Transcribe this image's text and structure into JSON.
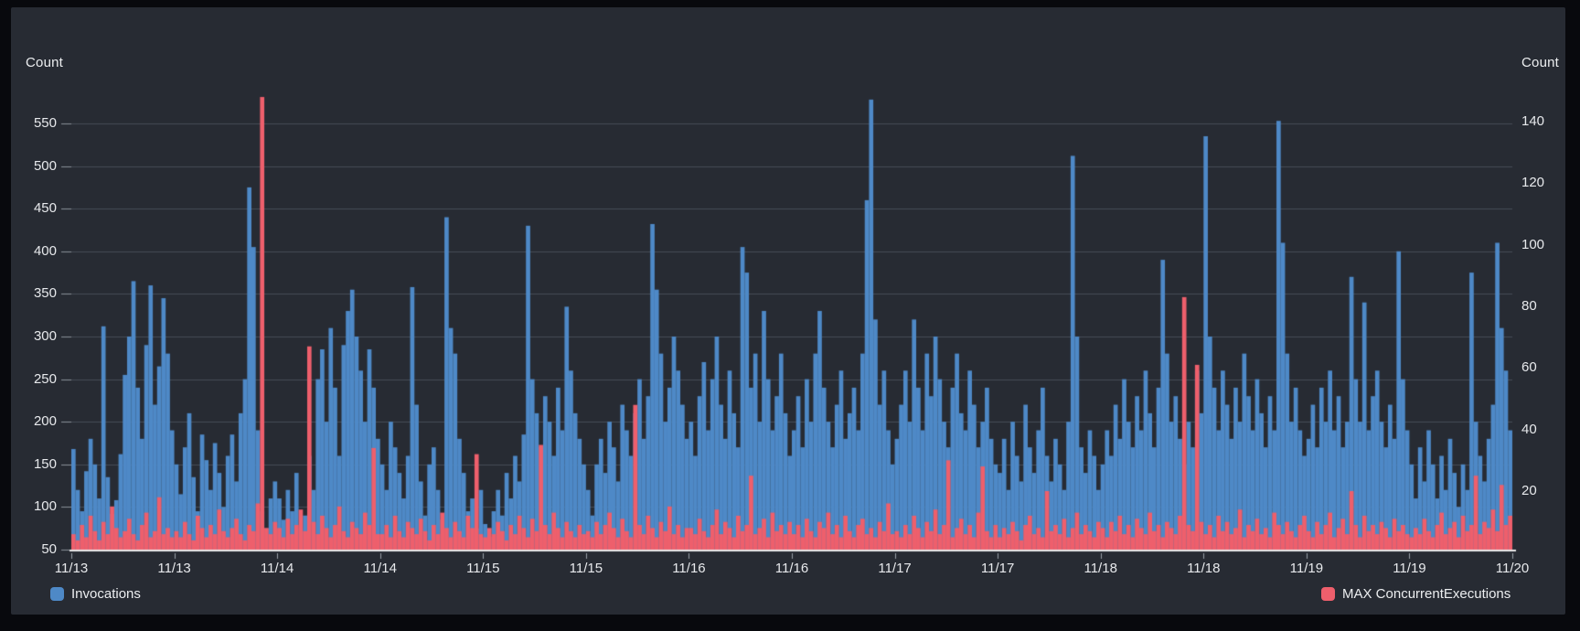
{
  "chart_data": {
    "type": "bar",
    "title": "",
    "grid": true,
    "legend_position": "bottom",
    "x_axis": {
      "tick_labels": [
        "11/13",
        "11/13",
        "11/14",
        "11/14",
        "11/15",
        "11/15",
        "11/16",
        "11/16",
        "11/17",
        "11/17",
        "11/18",
        "11/18",
        "11/19",
        "11/19",
        "11/20"
      ]
    },
    "left_axis": {
      "label": "Count",
      "ticks": [
        550,
        500,
        450,
        400,
        350,
        300,
        250,
        200,
        150,
        100,
        50
      ],
      "range": [
        50,
        600
      ]
    },
    "right_axis": {
      "label": "Count",
      "ticks": [
        140,
        120,
        100,
        80,
        60,
        40,
        20
      ],
      "range": [
        1,
        153
      ]
    },
    "series": [
      {
        "name": "Invocations",
        "axis": "left",
        "color": "#4e89c7",
        "values": [
          168,
          120,
          95,
          142,
          180,
          150,
          110,
          312,
          135,
          92,
          108,
          162,
          255,
          300,
          365,
          240,
          180,
          290,
          360,
          220,
          265,
          345,
          280,
          190,
          150,
          115,
          170,
          210,
          135,
          95,
          185,
          155,
          120,
          175,
          140,
          100,
          160,
          185,
          130,
          210,
          250,
          475,
          405,
          190,
          95,
          75,
          110,
          130,
          110,
          85,
          120,
          95,
          140,
          75,
          90,
          160,
          120,
          250,
          285,
          200,
          310,
          240,
          160,
          290,
          330,
          355,
          300,
          260,
          200,
          285,
          240,
          180,
          150,
          120,
          200,
          170,
          140,
          110,
          160,
          358,
          220,
          130,
          90,
          150,
          170,
          120,
          85,
          440,
          310,
          280,
          180,
          140,
          95,
          110,
          75,
          120,
          80,
          65,
          95,
          120,
          90,
          140,
          110,
          160,
          130,
          185,
          430,
          250,
          210,
          170,
          230,
          200,
          160,
          240,
          190,
          335,
          260,
          210,
          180,
          150,
          120,
          90,
          150,
          180,
          140,
          200,
          170,
          130,
          220,
          190,
          160,
          210,
          250,
          180,
          230,
          432,
          355,
          280,
          200,
          240,
          300,
          260,
          220,
          180,
          200,
          160,
          230,
          270,
          190,
          250,
          300,
          220,
          180,
          260,
          210,
          170,
          405,
          375,
          240,
          280,
          200,
          330,
          250,
          190,
          230,
          280,
          210,
          160,
          190,
          230,
          170,
          250,
          200,
          280,
          330,
          240,
          200,
          170,
          220,
          260,
          180,
          210,
          240,
          190,
          280,
          460,
          578,
          320,
          220,
          260,
          190,
          150,
          180,
          220,
          260,
          200,
          320,
          240,
          190,
          280,
          230,
          300,
          250,
          200,
          170,
          240,
          280,
          210,
          190,
          260,
          220,
          170,
          200,
          240,
          180,
          150,
          140,
          180,
          120,
          200,
          160,
          130,
          220,
          170,
          140,
          190,
          240,
          160,
          130,
          180,
          150,
          120,
          200,
          512,
          300,
          170,
          140,
          190,
          160,
          120,
          150,
          190,
          160,
          220,
          180,
          250,
          200,
          170,
          230,
          190,
          260,
          210,
          170,
          240,
          390,
          280,
          200,
          230,
          180,
          150,
          200,
          170,
          260,
          210,
          535,
          300,
          240,
          190,
          260,
          220,
          180,
          240,
          200,
          280,
          230,
          190,
          250,
          210,
          170,
          230,
          190,
          553,
          410,
          280,
          200,
          240,
          190,
          160,
          180,
          220,
          170,
          240,
          200,
          260,
          190,
          230,
          170,
          200,
          370,
          250,
          200,
          340,
          190,
          230,
          260,
          200,
          170,
          220,
          180,
          400,
          250,
          190,
          150,
          110,
          170,
          130,
          190,
          150,
          110,
          160,
          120,
          180,
          140,
          100,
          150,
          120,
          375,
          200,
          160,
          130,
          180,
          220,
          410,
          310,
          260,
          190
        ]
      },
      {
        "name": "MAX ConcurrentExecutions",
        "axis": "right",
        "color": "#ee5f6c",
        "values": [
          6,
          4,
          9,
          5,
          12,
          7,
          4,
          10,
          6,
          15,
          8,
          5,
          7,
          11,
          6,
          4,
          9,
          13,
          5,
          7,
          18,
          6,
          8,
          5,
          7,
          5,
          10,
          6,
          4,
          12,
          8,
          5,
          9,
          6,
          14,
          7,
          5,
          8,
          11,
          6,
          4,
          9,
          7,
          16,
          148,
          8,
          6,
          10,
          8,
          5,
          11,
          6,
          9,
          14,
          7,
          67,
          10,
          6,
          12,
          8,
          5,
          9,
          15,
          7,
          5,
          10,
          8,
          6,
          13,
          9,
          34,
          6,
          6,
          9,
          5,
          12,
          7,
          5,
          10,
          8,
          6,
          11,
          7,
          4,
          9,
          6,
          13,
          8,
          5,
          10,
          7,
          5,
          12,
          8,
          32,
          6,
          5,
          8,
          6,
          10,
          7,
          4,
          9,
          6,
          12,
          8,
          5,
          11,
          7,
          35,
          9,
          6,
          13,
          8,
          5,
          10,
          7,
          5,
          9,
          6,
          7,
          5,
          10,
          6,
          9,
          13,
          8,
          5,
          11,
          7,
          5,
          48,
          9,
          6,
          12,
          8,
          5,
          10,
          7,
          15,
          6,
          9,
          5,
          8,
          8,
          6,
          11,
          7,
          5,
          9,
          14,
          6,
          10,
          8,
          5,
          12,
          7,
          9,
          25,
          6,
          8,
          11,
          5,
          13,
          7,
          9,
          6,
          10,
          6,
          9,
          5,
          11,
          7,
          5,
          10,
          8,
          13,
          6,
          9,
          5,
          12,
          7,
          5,
          9,
          11,
          6,
          8,
          5,
          10,
          7,
          16,
          6,
          7,
          5,
          9,
          6,
          12,
          8,
          5,
          10,
          7,
          14,
          6,
          9,
          30,
          5,
          8,
          11,
          6,
          9,
          5,
          13,
          28,
          7,
          5,
          9,
          5,
          8,
          6,
          10,
          7,
          4,
          9,
          12,
          6,
          8,
          5,
          20,
          7,
          9,
          6,
          11,
          5,
          8,
          13,
          6,
          9,
          7,
          5,
          10,
          8,
          5,
          10,
          7,
          12,
          6,
          9,
          5,
          11,
          8,
          6,
          13,
          7,
          9,
          5,
          10,
          8,
          6,
          12,
          83,
          9,
          7,
          61,
          10,
          6,
          9,
          5,
          12,
          7,
          10,
          6,
          8,
          14,
          5,
          9,
          7,
          11,
          6,
          8,
          5,
          13,
          9,
          6,
          10,
          7,
          5,
          9,
          12,
          7,
          5,
          10,
          6,
          9,
          13,
          5,
          8,
          11,
          6,
          20,
          9,
          5,
          12,
          7,
          9,
          6,
          10,
          8,
          5,
          11,
          7,
          9,
          6,
          5,
          8,
          6,
          11,
          7,
          5,
          9,
          13,
          6,
          8,
          10,
          5,
          12,
          7,
          9,
          25,
          6,
          10,
          8,
          14,
          7,
          22,
          9,
          12
        ]
      }
    ],
    "colors": {
      "panel_background": "#272b33",
      "frame_background": "#08090d",
      "gridline": "#474d57",
      "axis_line": "#e8e9ea",
      "text": "#e7e9ec"
    }
  }
}
